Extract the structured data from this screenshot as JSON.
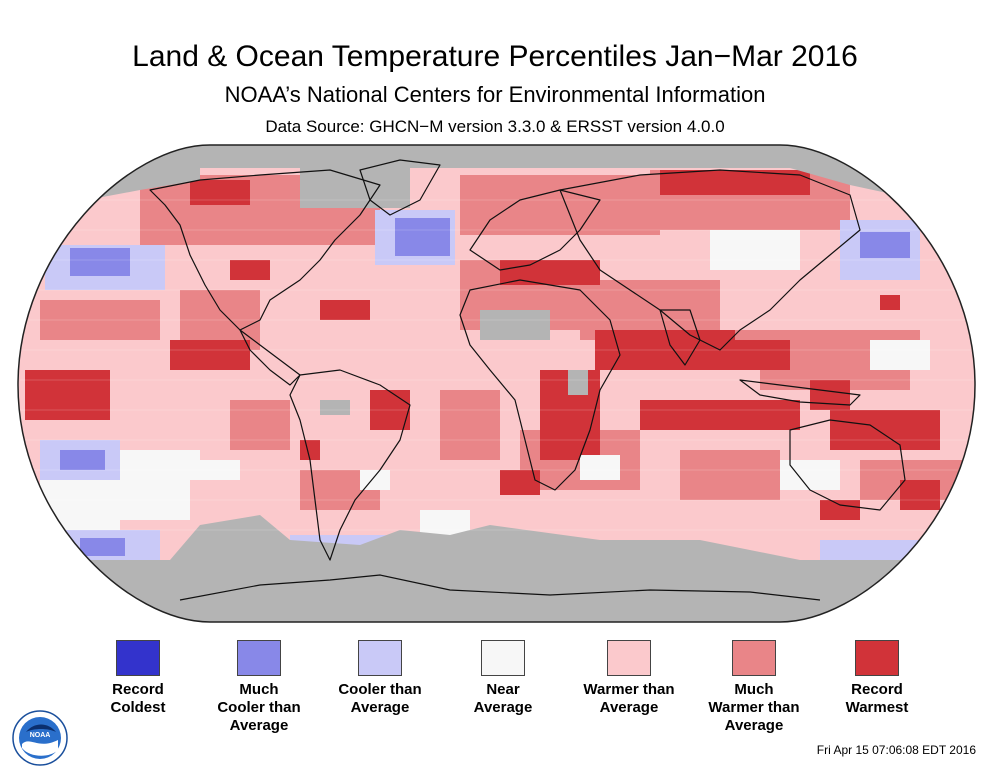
{
  "header": {
    "title": "Land & Ocean Temperature Percentiles Jan−Mar 2016",
    "subtitle": "NOAA’s National Centers for Environmental Information",
    "source": "Data Source: GHCN−M version 3.3.0 & ERSST version 4.0.0"
  },
  "legend": [
    {
      "line1": "Record",
      "line2": "Coldest",
      "line3": "",
      "color": "#3333cc"
    },
    {
      "line1": "Much",
      "line2": "Cooler than",
      "line3": "Average",
      "color": "#8888e8"
    },
    {
      "line1": "Cooler than",
      "line2": "Average",
      "line3": "",
      "color": "#c9c9f7"
    },
    {
      "line1": "Near",
      "line2": "Average",
      "line3": "",
      "color": "#f7f7f7"
    },
    {
      "line1": "Warmer than",
      "line2": "Average",
      "line3": "",
      "color": "#fbc9cc"
    },
    {
      "line1": "Much",
      "line2": "Warmer than",
      "line3": "Average",
      "color": "#e98588"
    },
    {
      "line1": "Record",
      "line2": "Warmest",
      "line3": "",
      "color": "#d13339"
    }
  ],
  "map": {
    "projection": "robinson",
    "nodata_color": "#b4b4b4",
    "ocean_base_color": "#fbc9cc"
  },
  "logo": {
    "text": "NOAA",
    "icon": "noaa-logo-icon"
  },
  "footer": {
    "timestamp": "Fri Apr 15 07:06:08 EDT 2016"
  }
}
